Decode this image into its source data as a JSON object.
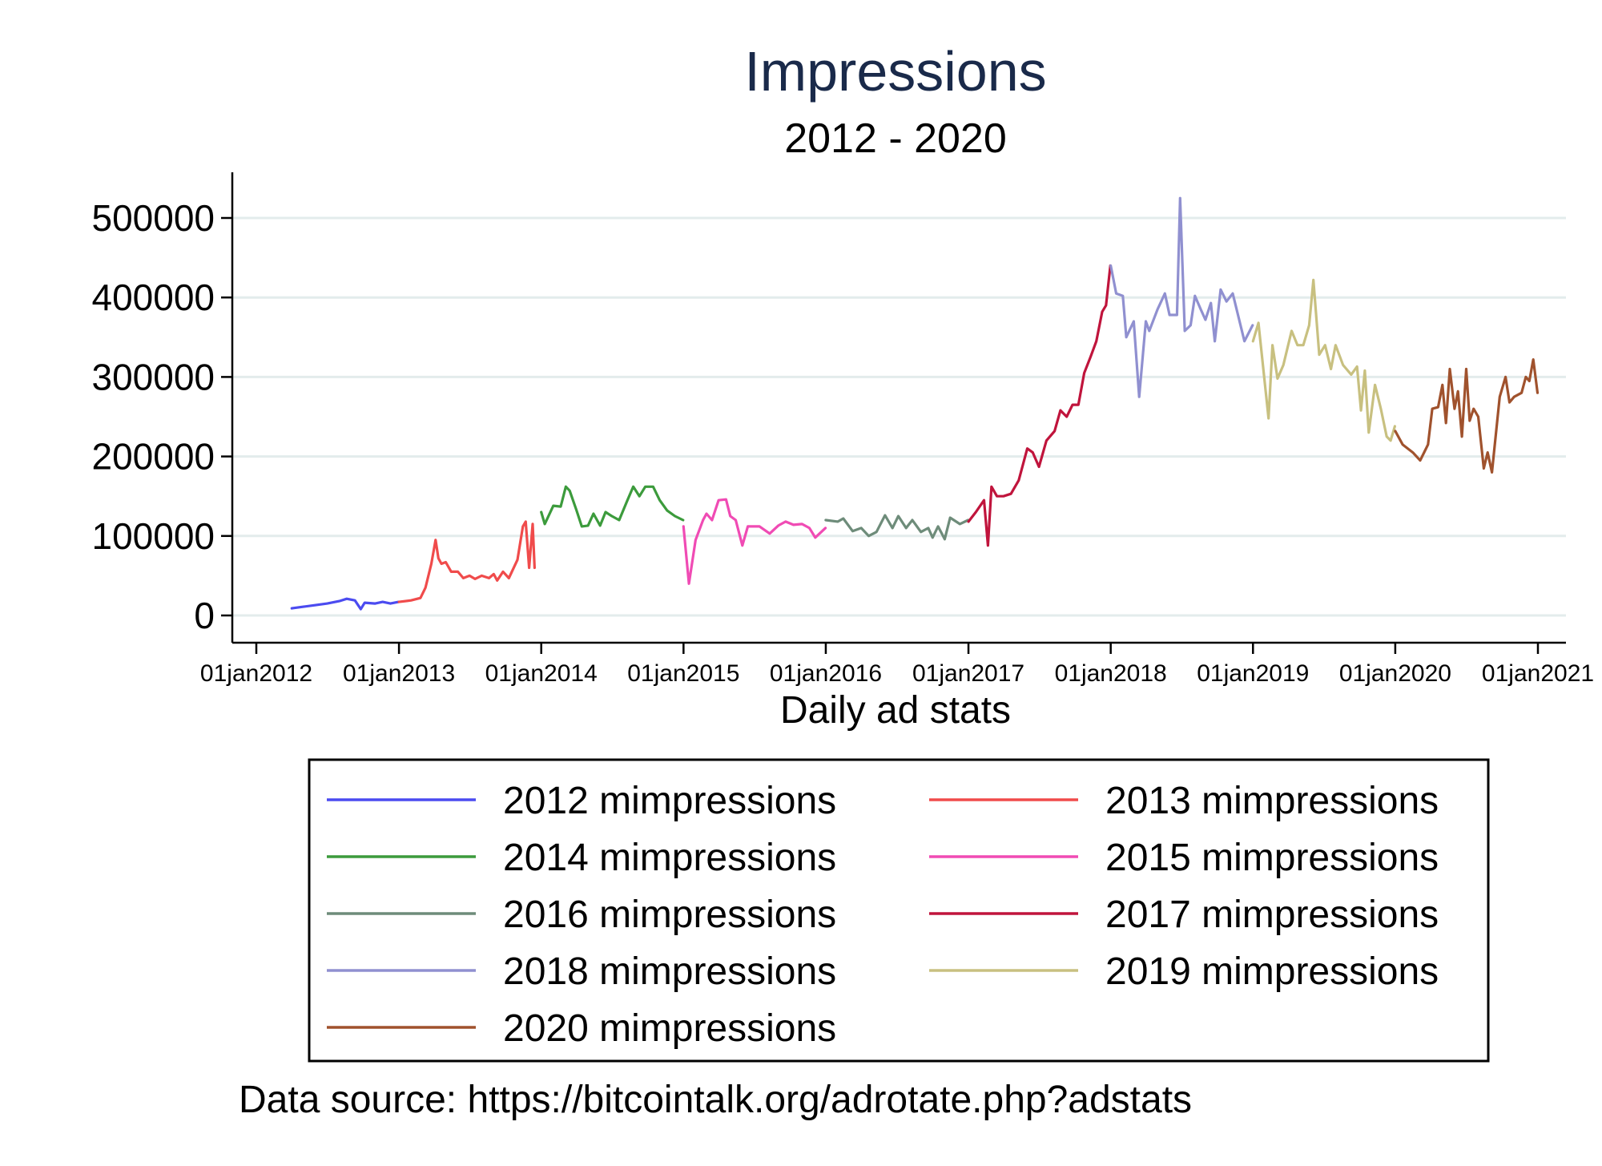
{
  "chart_data": {
    "type": "line",
    "title": "Impressions",
    "subtitle": "2012 - 2020",
    "xlabel": "Daily ad stats",
    "ylabel": "",
    "ylim": [
      -30000,
      560000
    ],
    "yticks": [
      0,
      100000,
      200000,
      300000,
      400000,
      500000
    ],
    "ytick_labels": [
      "0",
      "100000",
      "200000",
      "300000",
      "400000",
      "500000"
    ],
    "xlim": [
      "2011-10-15",
      "2021-01-20"
    ],
    "xticks": [
      "2012-01-01",
      "2013-01-01",
      "2014-01-01",
      "2015-01-01",
      "2016-01-01",
      "2017-01-01",
      "2018-01-01",
      "2019-01-01",
      "2020-01-01",
      "2021-01-01"
    ],
    "xtick_labels": [
      "01jan2012",
      "01jan2013",
      "01jan2014",
      "01jan2015",
      "01jan2016",
      "01jan2017",
      "01jan2018",
      "01jan2019",
      "01jan2020",
      "01jan2021"
    ],
    "grid": true,
    "legend_position": "bottom",
    "source_note": "Data source: https://bitcointalk.org/adrotate.php?adstats",
    "series": [
      {
        "name": "2012 mimpressions",
        "color": "#4b4bf0",
        "points": [
          [
            "2012-04-01",
            9000
          ],
          [
            "2012-05-01",
            11000
          ],
          [
            "2012-06-01",
            13000
          ],
          [
            "2012-07-01",
            15000
          ],
          [
            "2012-08-01",
            18000
          ],
          [
            "2012-08-20",
            21000
          ],
          [
            "2012-09-10",
            19000
          ],
          [
            "2012-09-25",
            8000
          ],
          [
            "2012-10-05",
            16000
          ],
          [
            "2012-11-01",
            15000
          ],
          [
            "2012-11-20",
            17000
          ],
          [
            "2012-12-10",
            15000
          ],
          [
            "2012-12-31",
            17000
          ]
        ]
      },
      {
        "name": "2013 mimpressions",
        "color": "#f04b4b",
        "points": [
          [
            "2013-01-01",
            17000
          ],
          [
            "2013-02-01",
            19000
          ],
          [
            "2013-02-25",
            22000
          ],
          [
            "2013-03-10",
            35000
          ],
          [
            "2013-03-25",
            65000
          ],
          [
            "2013-04-05",
            95000
          ],
          [
            "2013-04-12",
            72000
          ],
          [
            "2013-04-20",
            65000
          ],
          [
            "2013-05-01",
            67000
          ],
          [
            "2013-05-15",
            55000
          ],
          [
            "2013-06-01",
            55000
          ],
          [
            "2013-06-15",
            47000
          ],
          [
            "2013-07-01",
            50000
          ],
          [
            "2013-07-15",
            46000
          ],
          [
            "2013-08-01",
            50000
          ],
          [
            "2013-08-20",
            47000
          ],
          [
            "2013-09-01",
            52000
          ],
          [
            "2013-09-10",
            44000
          ],
          [
            "2013-09-25",
            55000
          ],
          [
            "2013-10-10",
            47000
          ],
          [
            "2013-11-01",
            70000
          ],
          [
            "2013-11-15",
            112000
          ],
          [
            "2013-11-22",
            118000
          ],
          [
            "2013-12-01",
            60000
          ],
          [
            "2013-12-10",
            115000
          ],
          [
            "2013-12-15",
            60000
          ]
        ]
      },
      {
        "name": "2014 mimpressions",
        "color": "#3c9b3c",
        "points": [
          [
            "2014-01-01",
            130000
          ],
          [
            "2014-01-10",
            115000
          ],
          [
            "2014-02-01",
            138000
          ],
          [
            "2014-02-20",
            137000
          ],
          [
            "2014-03-05",
            162000
          ],
          [
            "2014-03-15",
            157000
          ],
          [
            "2014-04-01",
            133000
          ],
          [
            "2014-04-15",
            112000
          ],
          [
            "2014-05-01",
            113000
          ],
          [
            "2014-05-15",
            128000
          ],
          [
            "2014-06-01",
            113000
          ],
          [
            "2014-06-15",
            130000
          ],
          [
            "2014-07-01",
            125000
          ],
          [
            "2014-07-20",
            120000
          ],
          [
            "2014-08-10",
            145000
          ],
          [
            "2014-08-25",
            162000
          ],
          [
            "2014-09-10",
            150000
          ],
          [
            "2014-09-25",
            162000
          ],
          [
            "2014-10-15",
            162000
          ],
          [
            "2014-11-01",
            145000
          ],
          [
            "2014-11-20",
            132000
          ],
          [
            "2014-12-10",
            125000
          ],
          [
            "2014-12-31",
            120000
          ]
        ]
      },
      {
        "name": "2015 mimpressions",
        "color": "#f04bb4",
        "points": [
          [
            "2015-01-01",
            112000
          ],
          [
            "2015-01-15",
            40000
          ],
          [
            "2015-02-01",
            95000
          ],
          [
            "2015-02-20",
            120000
          ],
          [
            "2015-03-01",
            128000
          ],
          [
            "2015-03-15",
            120000
          ],
          [
            "2015-04-01",
            145000
          ],
          [
            "2015-04-20",
            146000
          ],
          [
            "2015-05-01",
            125000
          ],
          [
            "2015-05-15",
            120000
          ],
          [
            "2015-06-01",
            88000
          ],
          [
            "2015-06-15",
            112000
          ],
          [
            "2015-07-15",
            112000
          ],
          [
            "2015-08-10",
            103000
          ],
          [
            "2015-09-01",
            113000
          ],
          [
            "2015-09-20",
            118000
          ],
          [
            "2015-10-10",
            114000
          ],
          [
            "2015-11-01",
            115000
          ],
          [
            "2015-11-20",
            110000
          ],
          [
            "2015-12-05",
            98000
          ],
          [
            "2015-12-31",
            110000
          ]
        ]
      },
      {
        "name": "2016 mimpressions",
        "color": "#6e8c7a",
        "points": [
          [
            "2016-01-01",
            120000
          ],
          [
            "2016-02-01",
            118000
          ],
          [
            "2016-02-15",
            122000
          ],
          [
            "2016-03-10",
            106000
          ],
          [
            "2016-04-01",
            110000
          ],
          [
            "2016-04-20",
            100000
          ],
          [
            "2016-05-10",
            105000
          ],
          [
            "2016-06-01",
            126000
          ],
          [
            "2016-06-20",
            110000
          ],
          [
            "2016-07-05",
            125000
          ],
          [
            "2016-07-25",
            110000
          ],
          [
            "2016-08-10",
            120000
          ],
          [
            "2016-09-01",
            105000
          ],
          [
            "2016-09-20",
            110000
          ],
          [
            "2016-10-01",
            98000
          ],
          [
            "2016-10-15",
            112000
          ],
          [
            "2016-11-01",
            96000
          ],
          [
            "2016-11-15",
            123000
          ],
          [
            "2016-12-10",
            115000
          ],
          [
            "2016-12-31",
            120000
          ]
        ]
      },
      {
        "name": "2017 mimpressions",
        "color": "#c0143c",
        "points": [
          [
            "2017-01-01",
            118000
          ],
          [
            "2017-01-20",
            130000
          ],
          [
            "2017-02-10",
            145000
          ],
          [
            "2017-02-20",
            88000
          ],
          [
            "2017-03-01",
            162000
          ],
          [
            "2017-03-15",
            150000
          ],
          [
            "2017-04-01",
            150000
          ],
          [
            "2017-04-20",
            153000
          ],
          [
            "2017-05-10",
            170000
          ],
          [
            "2017-06-01",
            210000
          ],
          [
            "2017-06-15",
            205000
          ],
          [
            "2017-07-01",
            187000
          ],
          [
            "2017-07-20",
            220000
          ],
          [
            "2017-08-10",
            232000
          ],
          [
            "2017-08-25",
            258000
          ],
          [
            "2017-09-10",
            250000
          ],
          [
            "2017-09-25",
            265000
          ],
          [
            "2017-10-10",
            265000
          ],
          [
            "2017-10-25",
            305000
          ],
          [
            "2017-11-10",
            325000
          ],
          [
            "2017-11-25",
            345000
          ],
          [
            "2017-12-10",
            382000
          ],
          [
            "2017-12-20",
            390000
          ],
          [
            "2017-12-31",
            440000
          ]
        ]
      },
      {
        "name": "2018 mimpressions",
        "color": "#9090d0",
        "points": [
          [
            "2018-01-01",
            440000
          ],
          [
            "2018-01-15",
            405000
          ],
          [
            "2018-02-01",
            402000
          ],
          [
            "2018-02-10",
            350000
          ],
          [
            "2018-03-01",
            370000
          ],
          [
            "2018-03-15",
            275000
          ],
          [
            "2018-04-01",
            370000
          ],
          [
            "2018-04-10",
            358000
          ],
          [
            "2018-05-01",
            385000
          ],
          [
            "2018-05-20",
            405000
          ],
          [
            "2018-06-01",
            378000
          ],
          [
            "2018-06-20",
            378000
          ],
          [
            "2018-06-28",
            525000
          ],
          [
            "2018-07-10",
            358000
          ],
          [
            "2018-07-25",
            365000
          ],
          [
            "2018-08-05",
            402000
          ],
          [
            "2018-08-20",
            385000
          ],
          [
            "2018-09-01",
            372000
          ],
          [
            "2018-09-15",
            393000
          ],
          [
            "2018-09-25",
            345000
          ],
          [
            "2018-10-10",
            410000
          ],
          [
            "2018-10-25",
            395000
          ],
          [
            "2018-11-10",
            405000
          ],
          [
            "2018-11-25",
            375000
          ],
          [
            "2018-12-10",
            345000
          ],
          [
            "2018-12-31",
            365000
          ]
        ]
      },
      {
        "name": "2019 mimpressions",
        "color": "#c8c080",
        "points": [
          [
            "2019-01-01",
            345000
          ],
          [
            "2019-01-15",
            368000
          ],
          [
            "2019-02-10",
            248000
          ],
          [
            "2019-02-20",
            340000
          ],
          [
            "2019-03-05",
            298000
          ],
          [
            "2019-03-20",
            315000
          ],
          [
            "2019-04-10",
            358000
          ],
          [
            "2019-04-25",
            340000
          ],
          [
            "2019-05-10",
            340000
          ],
          [
            "2019-05-25",
            365000
          ],
          [
            "2019-06-05",
            422000
          ],
          [
            "2019-06-20",
            328000
          ],
          [
            "2019-07-05",
            340000
          ],
          [
            "2019-07-20",
            310000
          ],
          [
            "2019-08-01",
            340000
          ],
          [
            "2019-08-20",
            315000
          ],
          [
            "2019-09-10",
            303000
          ],
          [
            "2019-09-25",
            313000
          ],
          [
            "2019-10-05",
            258000
          ],
          [
            "2019-10-15",
            308000
          ],
          [
            "2019-10-25",
            230000
          ],
          [
            "2019-11-10",
            290000
          ],
          [
            "2019-11-25",
            260000
          ],
          [
            "2019-12-10",
            225000
          ],
          [
            "2019-12-20",
            220000
          ],
          [
            "2019-12-31",
            238000
          ]
        ]
      },
      {
        "name": "2020 mimpressions",
        "color": "#a0522d",
        "points": [
          [
            "2020-01-01",
            232000
          ],
          [
            "2020-01-20",
            215000
          ],
          [
            "2020-02-15",
            205000
          ],
          [
            "2020-03-05",
            195000
          ],
          [
            "2020-03-25",
            215000
          ],
          [
            "2020-04-05",
            260000
          ],
          [
            "2020-04-20",
            262000
          ],
          [
            "2020-05-01",
            290000
          ],
          [
            "2020-05-10",
            242000
          ],
          [
            "2020-05-20",
            310000
          ],
          [
            "2020-06-01",
            260000
          ],
          [
            "2020-06-10",
            282000
          ],
          [
            "2020-06-20",
            225000
          ],
          [
            "2020-07-01",
            310000
          ],
          [
            "2020-07-10",
            245000
          ],
          [
            "2020-07-20",
            260000
          ],
          [
            "2020-08-01",
            250000
          ],
          [
            "2020-08-15",
            185000
          ],
          [
            "2020-08-25",
            205000
          ],
          [
            "2020-09-05",
            180000
          ],
          [
            "2020-09-25",
            275000
          ],
          [
            "2020-10-10",
            300000
          ],
          [
            "2020-10-20",
            268000
          ],
          [
            "2020-11-01",
            275000
          ],
          [
            "2020-11-20",
            280000
          ],
          [
            "2020-12-01",
            300000
          ],
          [
            "2020-12-10",
            295000
          ],
          [
            "2020-12-20",
            322000
          ],
          [
            "2020-12-31",
            280000
          ]
        ]
      }
    ]
  }
}
